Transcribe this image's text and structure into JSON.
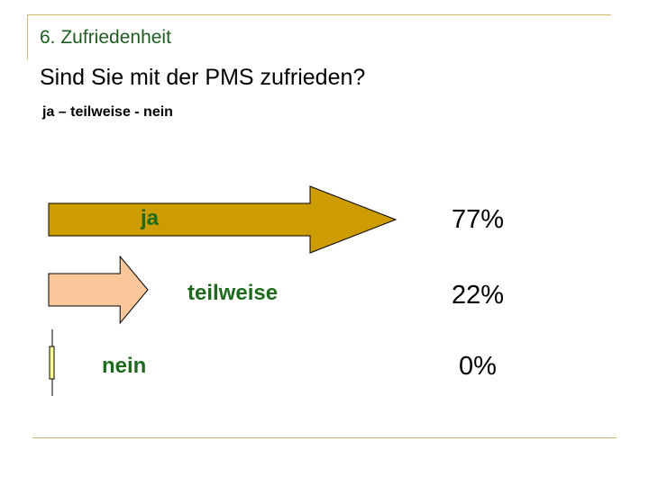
{
  "header": {
    "section_title": "6. Zufriedenheit",
    "question": "Sind Sie mit der PMS zufrieden?",
    "options_line": "ja – teilweise - nein"
  },
  "chart_data": {
    "type": "bar",
    "categories": [
      "ja",
      "teilweise",
      "nein"
    ],
    "values": [
      77,
      22,
      0
    ],
    "value_labels": [
      "77%",
      "22%",
      "0%"
    ],
    "colors": [
      "#cc9c00",
      "#fbc79a",
      "#ffff99"
    ],
    "label_color": "#1e6b1e",
    "ylim": [
      0,
      100
    ]
  }
}
